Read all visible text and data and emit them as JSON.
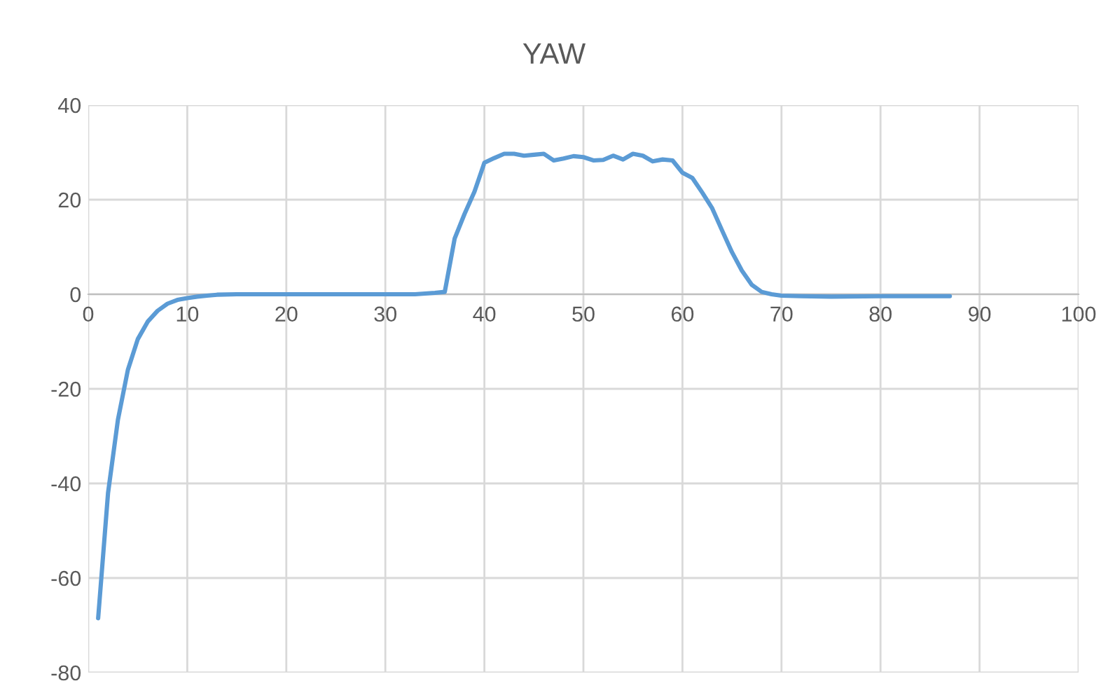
{
  "chart_data": {
    "type": "line",
    "title": "YAW",
    "series": [
      {
        "color": "#5b9bd5",
        "x": [
          1,
          2,
          3,
          4,
          5,
          6,
          7,
          8,
          9,
          10,
          11,
          12,
          13,
          15,
          18,
          20,
          25,
          30,
          33,
          35,
          36,
          37,
          38,
          39,
          40,
          41,
          42,
          43,
          44,
          45,
          46,
          47,
          48,
          49,
          50,
          51,
          52,
          53,
          54,
          55,
          56,
          57,
          58,
          59,
          60,
          61,
          62,
          63,
          64,
          65,
          66,
          67,
          68,
          69,
          70,
          72,
          75,
          80,
          85,
          87
        ],
        "values": [
          -68.5,
          -42,
          -26.5,
          -16,
          -9.5,
          -5.8,
          -3.5,
          -2,
          -1.2,
          -0.8,
          -0.5,
          -0.3,
          -0.1,
          0,
          0,
          0,
          0,
          0,
          0,
          0.3,
          0.5,
          11.8,
          17,
          21.7,
          27.8,
          28.8,
          29.7,
          29.7,
          29.3,
          29.5,
          29.7,
          28.3,
          28.7,
          29.2,
          29,
          28.3,
          28.4,
          29.3,
          28.5,
          29.7,
          29.3,
          28.1,
          28.5,
          28.3,
          25.7,
          24.6,
          21.5,
          18.2,
          13.5,
          8.9,
          5,
          2,
          0.5,
          0,
          -0.3,
          -0.4,
          -0.5,
          -0.4,
          -0.4,
          -0.4
        ]
      }
    ],
    "xlim": [
      0,
      100
    ],
    "xticks": [
      0,
      10,
      20,
      30,
      40,
      50,
      60,
      70,
      80,
      90,
      100
    ],
    "ylim": [
      -80,
      40
    ],
    "yticks": [
      -80,
      -60,
      -40,
      -20,
      0,
      20,
      40
    ],
    "grid": true,
    "legend": false,
    "marker": "none",
    "line_style": "solid"
  }
}
